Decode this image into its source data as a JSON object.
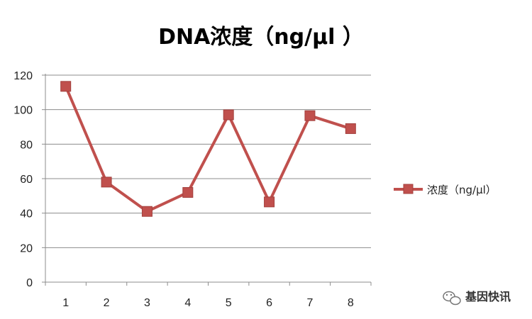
{
  "chart_data": {
    "type": "line",
    "title": "DNA浓度（ng/μl ）",
    "xlabel": "",
    "ylabel": "",
    "categories": [
      "1",
      "2",
      "3",
      "4",
      "5",
      "6",
      "7",
      "8"
    ],
    "series": [
      {
        "name": "浓度（ng/μl）",
        "values": [
          113.5,
          58,
          41,
          52,
          97,
          46.5,
          96.5,
          89
        ]
      }
    ],
    "yticks": [
      "0",
      "20",
      "40",
      "60",
      "80",
      "100",
      "120"
    ],
    "ylim": [
      0,
      120
    ],
    "grid": true,
    "legend_position": "right",
    "series_color": "#C0504D",
    "marker_color": "#C0504D",
    "marker_shape": "square"
  },
  "watermark": {
    "text": "基因快讯",
    "icon": "wechat-icon"
  }
}
